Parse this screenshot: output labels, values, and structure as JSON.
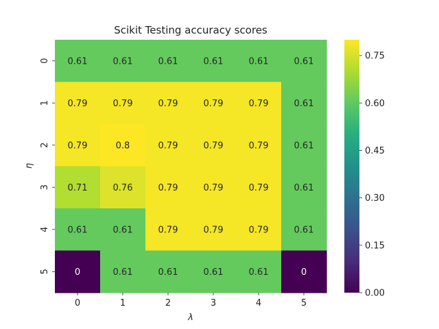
{
  "chart_data": {
    "type": "heatmap",
    "title": "Scikit Testing accuracy scores",
    "xlabel": "λ",
    "ylabel": "η",
    "x_categories": [
      "0",
      "1",
      "2",
      "3",
      "4",
      "5"
    ],
    "y_categories": [
      "0",
      "1",
      "2",
      "3",
      "4",
      "5"
    ],
    "values": [
      [
        0.61,
        0.61,
        0.61,
        0.61,
        0.61,
        0.61
      ],
      [
        0.79,
        0.79,
        0.79,
        0.79,
        0.79,
        0.61
      ],
      [
        0.79,
        0.8,
        0.79,
        0.79,
        0.79,
        0.61
      ],
      [
        0.71,
        0.76,
        0.79,
        0.79,
        0.79,
        0.61
      ],
      [
        0.61,
        0.61,
        0.79,
        0.79,
        0.79,
        0.61
      ],
      [
        0,
        0.61,
        0.61,
        0.61,
        0.61,
        0
      ]
    ],
    "colormap": "viridis",
    "vmin": 0,
    "vmax": 0.8,
    "colorbar_ticks": [
      "0.00",
      "0.15",
      "0.30",
      "0.45",
      "0.60",
      "0.75"
    ],
    "annot_color_dark": "#262626",
    "annot_color_light": "#ffffff"
  }
}
